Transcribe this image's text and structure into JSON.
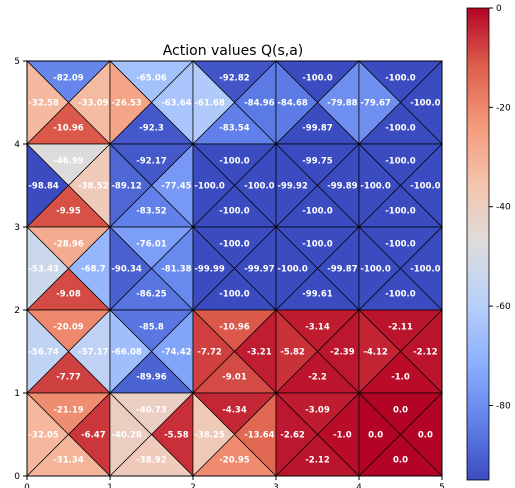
{
  "chart_data": {
    "type": "heatmap",
    "title": "Action values Q(s,a)",
    "xlabel": "",
    "ylabel": "",
    "xlim": [
      0,
      5
    ],
    "ylim": [
      0,
      5
    ],
    "x_ticks": [
      "0",
      "1",
      "2",
      "3",
      "4",
      "5"
    ],
    "y_ticks": [
      "0",
      "1",
      "2",
      "3",
      "4",
      "5"
    ],
    "grid_layout": "each cell split into four triangles: top, left, right, bottom",
    "colormap": "coolwarm",
    "colorbar": {
      "range": [
        -95,
        0
      ],
      "ticks": [
        "0",
        "-20",
        "-40",
        "-60",
        "-80"
      ],
      "tick_values": [
        0,
        -20,
        -40,
        -60,
        -80
      ],
      "placement": "right"
    },
    "cells": [
      {
        "x": 0,
        "y": 4,
        "top": "-82.09",
        "left": "-32.58",
        "right": "-33.09",
        "bottom": "-10.96"
      },
      {
        "x": 1,
        "y": 4,
        "top": "-65.06",
        "left": "-26.53",
        "right": "-63.64",
        "bottom": "-92.3"
      },
      {
        "x": 2,
        "y": 4,
        "top": "-92.82",
        "left": "-61.68",
        "right": "-84.96",
        "bottom": "-83.54"
      },
      {
        "x": 3,
        "y": 4,
        "top": "-100.0",
        "left": "-84.68",
        "right": "-79.88",
        "bottom": "-99.87"
      },
      {
        "x": 4,
        "y": 4,
        "top": "-100.0",
        "left": "-79.67",
        "right": "-100.0",
        "bottom": "-100.0"
      },
      {
        "x": 0,
        "y": 3,
        "top": "-46.99",
        "left": "-98.84",
        "right": "-38.52",
        "bottom": "-9.95"
      },
      {
        "x": 1,
        "y": 3,
        "top": "-92.17",
        "left": "-89.12",
        "right": "-77.45",
        "bottom": "-83.52"
      },
      {
        "x": 2,
        "y": 3,
        "top": "-100.0",
        "left": "-100.0",
        "right": "-100.0",
        "bottom": "-100.0"
      },
      {
        "x": 3,
        "y": 3,
        "top": "-99.75",
        "left": "-99.92",
        "right": "-99.89",
        "bottom": "-100.0"
      },
      {
        "x": 4,
        "y": 3,
        "top": "-100.0",
        "left": "-100.0",
        "right": "-100.0",
        "bottom": "-100.0"
      },
      {
        "x": 0,
        "y": 2,
        "top": "-28.96",
        "left": "-53.43",
        "right": "-68.7",
        "bottom": "-9.08"
      },
      {
        "x": 1,
        "y": 2,
        "top": "-76.01",
        "left": "-90.34",
        "right": "-81.38",
        "bottom": "-86.25"
      },
      {
        "x": 2,
        "y": 2,
        "top": "-100.0",
        "left": "-99.99",
        "right": "-99.97",
        "bottom": "-100.0"
      },
      {
        "x": 3,
        "y": 2,
        "top": "-100.0",
        "left": "-100.0",
        "right": "-99.87",
        "bottom": "-99.61"
      },
      {
        "x": 4,
        "y": 2,
        "top": "-100.0",
        "left": "-100.0",
        "right": "-100.0",
        "bottom": "-100.0"
      },
      {
        "x": 0,
        "y": 1,
        "top": "-20.09",
        "left": "-56.74",
        "right": "-57.17",
        "bottom": "-7.77"
      },
      {
        "x": 1,
        "y": 1,
        "top": "-85.8",
        "left": "-66.08",
        "right": "-74.42",
        "bottom": "-89.96"
      },
      {
        "x": 2,
        "y": 1,
        "top": "-10.96",
        "left": "-7.72",
        "right": "-3.21",
        "bottom": "-9.01"
      },
      {
        "x": 3,
        "y": 1,
        "top": "-3.14",
        "left": "-5.82",
        "right": "-2.39",
        "bottom": "-2.2"
      },
      {
        "x": 4,
        "y": 1,
        "top": "-2.11",
        "left": "-4.12",
        "right": "-2.12",
        "bottom": "-1.0"
      },
      {
        "x": 0,
        "y": 0,
        "top": "-21.19",
        "left": "-32.05",
        "right": "-6.47",
        "bottom": "-31.34"
      },
      {
        "x": 1,
        "y": 0,
        "top": "-40.73",
        "left": "-40.28",
        "right": "-5.58",
        "bottom": "-38.92"
      },
      {
        "x": 2,
        "y": 0,
        "top": "-4.34",
        "left": "-38.25",
        "right": "-13.64",
        "bottom": "-20.95"
      },
      {
        "x": 3,
        "y": 0,
        "top": "-3.09",
        "left": "-2.62",
        "right": "-1.0",
        "bottom": "-2.12"
      },
      {
        "x": 4,
        "y": 0,
        "top": "0.0",
        "left": "0.0",
        "right": "0.0",
        "bottom": "0.0"
      }
    ]
  }
}
